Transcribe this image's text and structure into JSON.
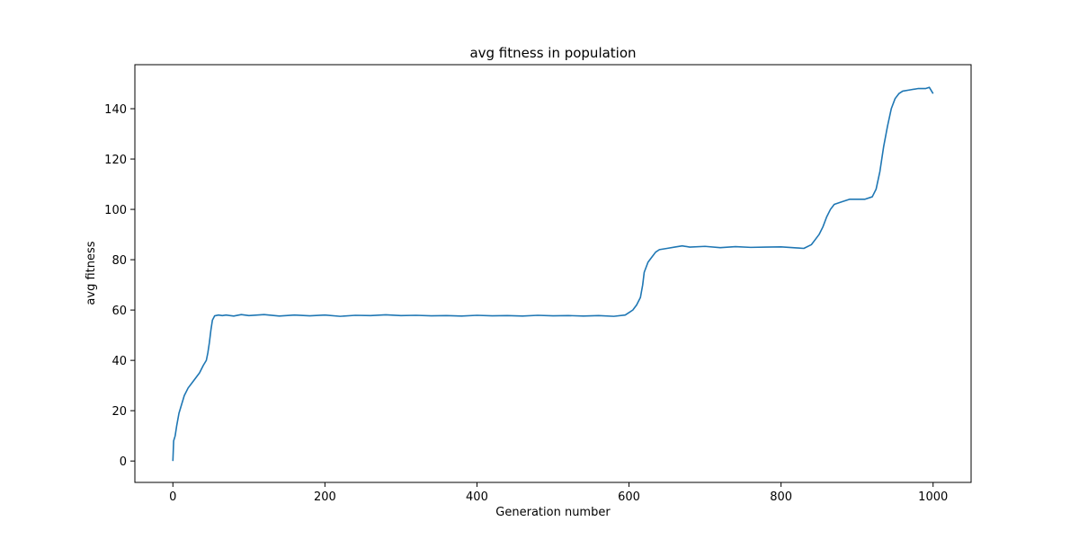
{
  "chart_data": {
    "type": "line",
    "title": "avg fitness in population",
    "xlabel": "Generation number",
    "ylabel": "avg fitness",
    "xlim": [
      -50,
      1050
    ],
    "ylim": [
      -8.5,
      157.5
    ],
    "xticks": [
      0,
      200,
      400,
      600,
      800,
      1000
    ],
    "yticks": [
      0,
      20,
      40,
      60,
      80,
      100,
      120,
      140
    ],
    "grid": false,
    "series": [
      {
        "color": "#1f77b4",
        "points": [
          [
            0,
            0
          ],
          [
            1,
            8
          ],
          [
            3,
            10
          ],
          [
            5,
            14
          ],
          [
            8,
            19
          ],
          [
            12,
            23
          ],
          [
            15,
            26
          ],
          [
            20,
            29
          ],
          [
            25,
            31
          ],
          [
            30,
            33
          ],
          [
            35,
            35
          ],
          [
            40,
            38
          ],
          [
            44,
            40
          ],
          [
            46,
            43
          ],
          [
            48,
            47
          ],
          [
            50,
            52
          ],
          [
            52,
            56
          ],
          [
            55,
            57.7
          ],
          [
            60,
            58
          ],
          [
            65,
            57.8
          ],
          [
            70,
            58
          ],
          [
            80,
            57.6
          ],
          [
            90,
            58.2
          ],
          [
            100,
            57.8
          ],
          [
            120,
            58.2
          ],
          [
            140,
            57.6
          ],
          [
            160,
            58
          ],
          [
            180,
            57.7
          ],
          [
            200,
            58
          ],
          [
            220,
            57.5
          ],
          [
            240,
            57.9
          ],
          [
            260,
            57.8
          ],
          [
            280,
            58.1
          ],
          [
            300,
            57.8
          ],
          [
            320,
            57.9
          ],
          [
            340,
            57.7
          ],
          [
            360,
            57.8
          ],
          [
            380,
            57.6
          ],
          [
            400,
            57.9
          ],
          [
            420,
            57.7
          ],
          [
            440,
            57.8
          ],
          [
            460,
            57.6
          ],
          [
            480,
            57.9
          ],
          [
            500,
            57.7
          ],
          [
            520,
            57.8
          ],
          [
            540,
            57.6
          ],
          [
            560,
            57.8
          ],
          [
            580,
            57.5
          ],
          [
            595,
            58
          ],
          [
            600,
            59
          ],
          [
            605,
            60
          ],
          [
            610,
            62
          ],
          [
            615,
            65
          ],
          [
            618,
            70
          ],
          [
            620,
            75
          ],
          [
            625,
            79
          ],
          [
            630,
            81
          ],
          [
            635,
            83
          ],
          [
            640,
            84
          ],
          [
            650,
            84.5
          ],
          [
            660,
            85
          ],
          [
            670,
            85.5
          ],
          [
            680,
            85
          ],
          [
            700,
            85.3
          ],
          [
            720,
            84.8
          ],
          [
            740,
            85.2
          ],
          [
            760,
            84.9
          ],
          [
            780,
            85
          ],
          [
            800,
            85.1
          ],
          [
            820,
            84.7
          ],
          [
            830,
            84.5
          ],
          [
            840,
            86
          ],
          [
            845,
            88
          ],
          [
            850,
            90
          ],
          [
            855,
            93
          ],
          [
            860,
            97
          ],
          [
            865,
            100
          ],
          [
            870,
            102
          ],
          [
            880,
            103
          ],
          [
            890,
            104
          ],
          [
            900,
            104
          ],
          [
            910,
            104
          ],
          [
            920,
            105
          ],
          [
            925,
            108
          ],
          [
            930,
            115
          ],
          [
            935,
            125
          ],
          [
            940,
            133
          ],
          [
            945,
            140
          ],
          [
            950,
            144
          ],
          [
            955,
            146
          ],
          [
            960,
            147
          ],
          [
            970,
            147.5
          ],
          [
            980,
            148
          ],
          [
            990,
            148
          ],
          [
            995,
            148.5
          ],
          [
            1000,
            146
          ]
        ]
      }
    ]
  }
}
